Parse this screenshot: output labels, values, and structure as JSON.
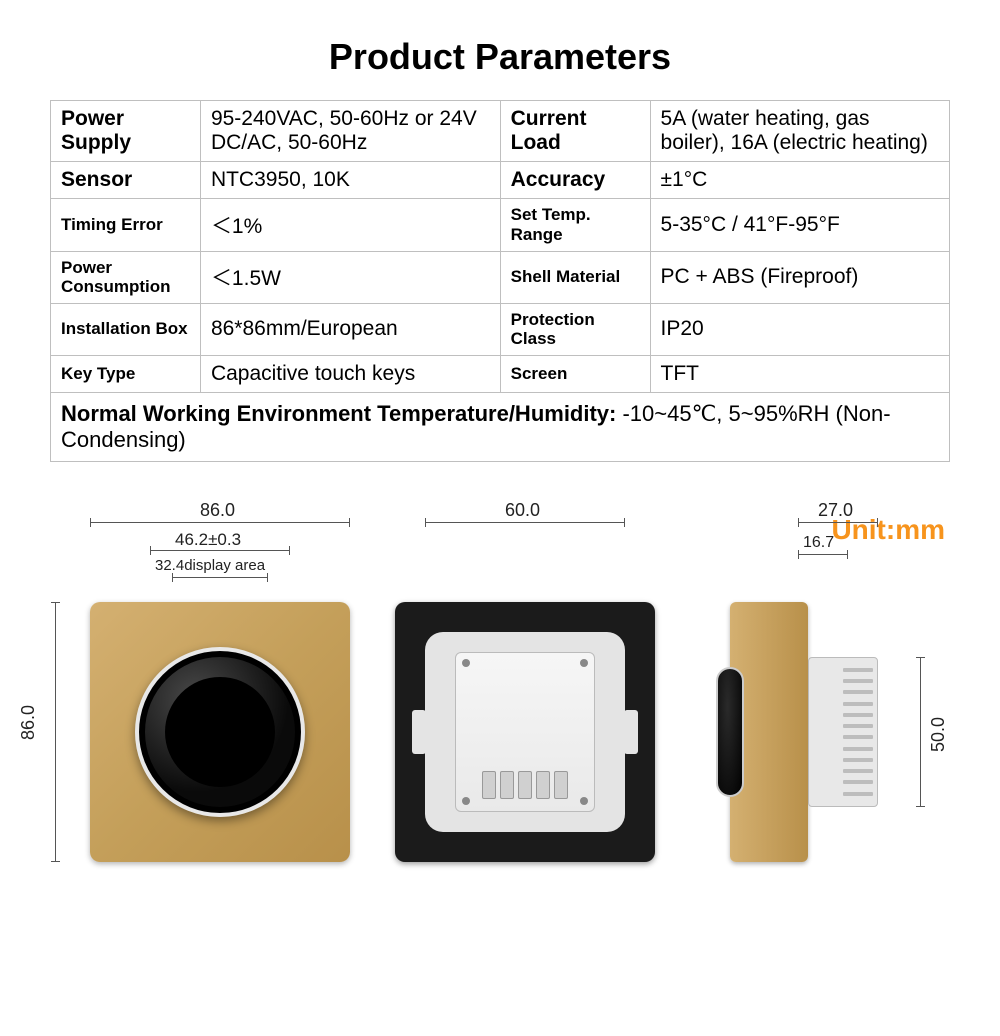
{
  "title": "Product Parameters",
  "specs": {
    "rows": [
      {
        "l1": "Power Supply",
        "v1": "95-240VAC, 50-60Hz or 24V DC/AC, 50-60Hz",
        "l2": "Current Load",
        "v2": "5A (water heating, gas boiler), 16A (electric heating)"
      },
      {
        "l1": "Sensor",
        "v1": "NTC3950, 10K",
        "l2": "Accuracy",
        "v2": "±1°C"
      },
      {
        "l1": "Timing Error",
        "v1": "＜1%",
        "l2": "Set Temp. Range",
        "v2": "5-35°C / 41°F-95°F"
      },
      {
        "l1": "Power Consumption",
        "v1": "＜1.5W",
        "l2": "Shell Material",
        "v2": "PC + ABS (Fireproof)"
      },
      {
        "l1": "Installation Box",
        "v1": "86*86mm/European",
        "l2": "Protection Class",
        "v2": "IP20"
      },
      {
        "l1": "Key Type",
        "v1": "Capacitive touch keys",
        "l2": "Screen",
        "v2": "TFT"
      }
    ],
    "smallLabelRows": [
      2,
      3,
      4,
      5
    ],
    "footer": {
      "label": "Normal Working Environment Temperature/Humidity: ",
      "value": "-10~45℃, 5~95%RH (Non-Condensing)"
    }
  },
  "dims": {
    "unit_label": "Unit:mm",
    "front_width": "86.0",
    "front_inner_width": "46.2±0.3",
    "front_display": "32.4display area",
    "front_height": "86.0",
    "back_width": "60.0",
    "side_depth_total": "27.0",
    "side_depth_face": "16.7",
    "side_body_height": "50.0"
  },
  "colors": {
    "accent": "#f7941d",
    "gold1": "#d4b071",
    "gold2": "#b8904a",
    "border": "#bfbfbf"
  }
}
